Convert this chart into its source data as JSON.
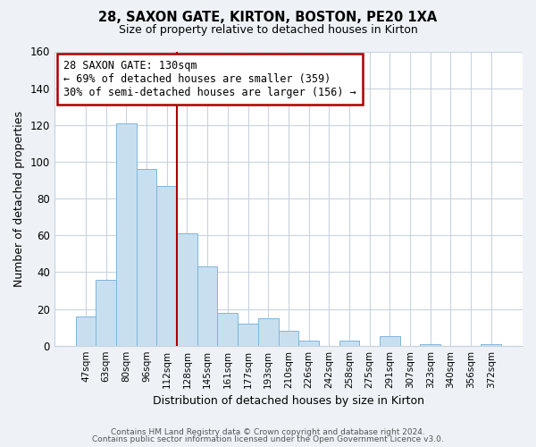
{
  "title": "28, SAXON GATE, KIRTON, BOSTON, PE20 1XA",
  "subtitle": "Size of property relative to detached houses in Kirton",
  "xlabel": "Distribution of detached houses by size in Kirton",
  "ylabel": "Number of detached properties",
  "bar_labels": [
    "47sqm",
    "63sqm",
    "80sqm",
    "96sqm",
    "112sqm",
    "128sqm",
    "145sqm",
    "161sqm",
    "177sqm",
    "193sqm",
    "210sqm",
    "226sqm",
    "242sqm",
    "258sqm",
    "275sqm",
    "291sqm",
    "307sqm",
    "323sqm",
    "340sqm",
    "356sqm",
    "372sqm"
  ],
  "bar_values": [
    16,
    36,
    121,
    96,
    87,
    61,
    43,
    18,
    12,
    15,
    8,
    3,
    0,
    3,
    0,
    5,
    0,
    1,
    0,
    0,
    1
  ],
  "bar_color": "#c8dff0",
  "bar_edge_color": "#7eb6d9",
  "vline_color": "#aa0000",
  "annotation_lines": [
    "28 SAXON GATE: 130sqm",
    "← 69% of detached houses are smaller (359)",
    "30% of semi-detached houses are larger (156) →"
  ],
  "ylim": [
    0,
    160
  ],
  "yticks": [
    0,
    20,
    40,
    60,
    80,
    100,
    120,
    140,
    160
  ],
  "footer1": "Contains HM Land Registry data © Crown copyright and database right 2024.",
  "footer2": "Contains public sector information licensed under the Open Government Licence v3.0.",
  "background_color": "#eef2f7",
  "plot_bg_color": "#ffffff",
  "grid_color": "#c8d4e0"
}
